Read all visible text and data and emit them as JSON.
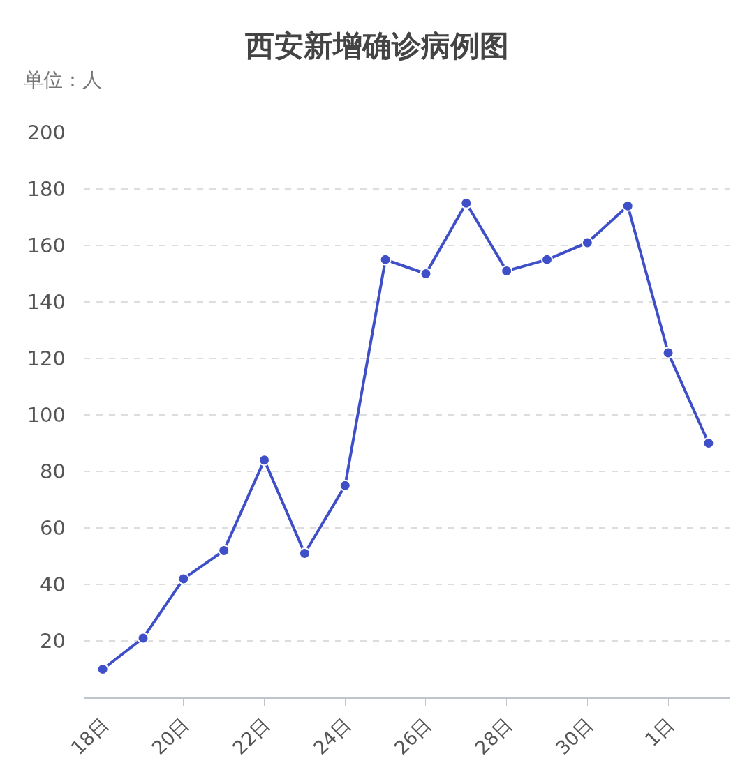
{
  "chart_data": {
    "type": "line",
    "title": "西安新增确诊病例图",
    "ylabel": "单位：人",
    "categories": [
      "18日",
      null,
      "20日",
      null,
      "22日",
      null,
      "24日",
      null,
      "26日",
      null,
      "28日",
      null,
      "30日",
      null,
      "1日",
      null
    ],
    "series": [
      {
        "color": "#3f4fc8",
        "values": [
          10,
          21,
          42,
          52,
          84,
          51,
          75,
          155,
          150,
          175,
          151,
          155,
          161,
          174,
          122,
          90
        ]
      }
    ],
    "ylim": [
      0,
      200
    ],
    "yticks": [
      20,
      40,
      60,
      80,
      100,
      120,
      140,
      160,
      180,
      200
    ],
    "grid": "y",
    "marker": "circle",
    "line_style": "solid",
    "legend": false
  }
}
